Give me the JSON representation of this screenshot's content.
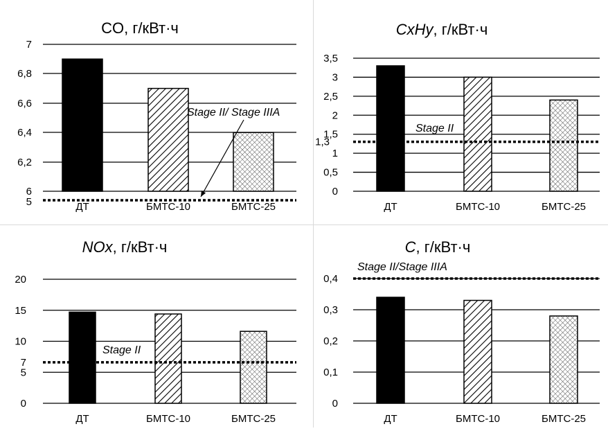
{
  "chart_data": [
    {
      "type": "bar",
      "title_italic": "",
      "title_rest": "CO, г/кВт·ч",
      "categories": [
        "ДТ",
        "БМТС-10",
        "БМТС-25"
      ],
      "values": [
        6.9,
        6.7,
        6.4
      ],
      "patterns": [
        "solid",
        "hatch",
        "cross"
      ],
      "ylim": [
        6,
        7
      ],
      "yticks": [
        "6",
        "6,2",
        "6,4",
        "6,6",
        "6,8",
        "7"
      ],
      "grid": true,
      "limit_line": {
        "label": "5",
        "annotation": "Stage II/ Stage IIIA",
        "arrow": true
      }
    },
    {
      "type": "bar",
      "title_italic": "CxHy",
      "title_rest": ", г/кВт·ч",
      "categories": [
        "ДТ",
        "БМТС-10",
        "БМТС-25"
      ],
      "values": [
        3.3,
        3.0,
        2.4
      ],
      "patterns": [
        "solid",
        "hatch",
        "cross"
      ],
      "ylim": [
        0,
        3.5
      ],
      "yticks": [
        "0",
        "0,5",
        "1",
        "1,5",
        "2",
        "2,5",
        "3",
        "3,5"
      ],
      "grid": true,
      "limit_line": {
        "value": 1.3,
        "label": "1,3",
        "annotation": "Stage II"
      }
    },
    {
      "type": "bar",
      "title_italic": "NOx",
      "title_rest": ", г/кВт·ч",
      "categories": [
        "ДТ",
        "БМТС-10",
        "БМТС-25"
      ],
      "values": [
        14.7,
        14.4,
        11.6
      ],
      "patterns": [
        "solid",
        "hatch",
        "cross"
      ],
      "ylim": [
        0,
        20
      ],
      "yticks": [
        "0",
        "5",
        "10",
        "15",
        "20"
      ],
      "grid": true,
      "limit_line": {
        "value": 6.6,
        "label": "7",
        "annotation": "Stage II"
      }
    },
    {
      "type": "bar",
      "title_italic": "C",
      "title_rest": ", г/кВт·ч",
      "categories": [
        "ДТ",
        "БМТС-10",
        "БМТС-25"
      ],
      "values": [
        0.34,
        0.33,
        0.28
      ],
      "patterns": [
        "solid",
        "hatch",
        "cross"
      ],
      "ylim": [
        0,
        0.4
      ],
      "yticks": [
        "0",
        "0,1",
        "0,2",
        "0,3",
        "0,4"
      ],
      "grid": true,
      "limit_line": {
        "value": 0.4,
        "annotation": "Stage II/Stage IIIA"
      }
    }
  ]
}
